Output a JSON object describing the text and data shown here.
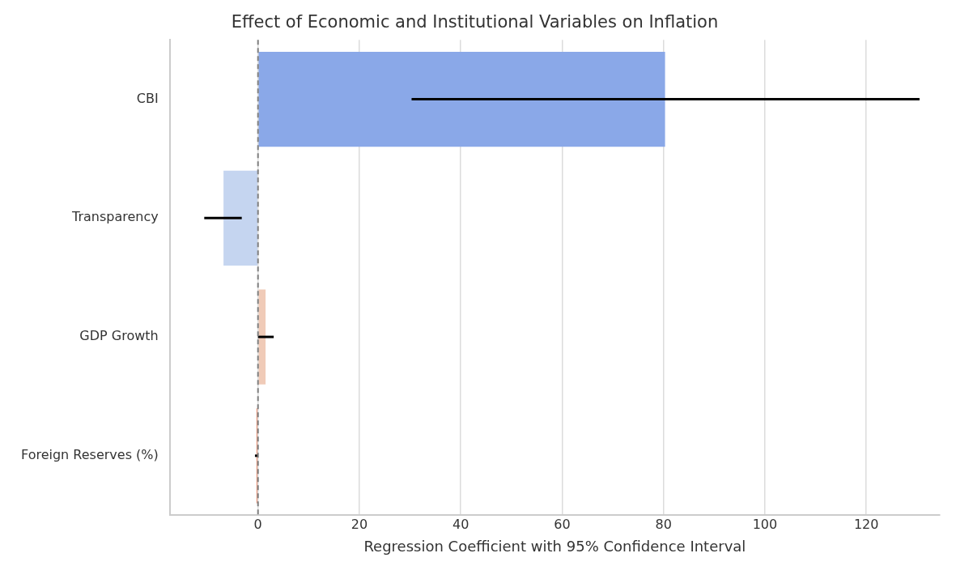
{
  "chart_data": {
    "type": "bar",
    "orientation": "horizontal",
    "title": "Effect of Economic and Institutional Variables on Inflation",
    "xlabel": "Regression Coefficient with 95% Confidence Interval",
    "categories": [
      "CBI",
      "Transparency",
      "GDP Growth",
      "Foreign Reserves (%)"
    ],
    "values": [
      80.3,
      -6.8,
      1.5,
      -0.3
    ],
    "colors": [
      "#8aa8e8",
      "#c5d5f0",
      "#f0cbb8",
      "#e8957a"
    ],
    "errors": [
      [
        30.3,
        130.5
      ],
      [
        -10.6,
        -3.2
      ],
      [
        0,
        3.1
      ],
      [
        -0.6,
        0
      ]
    ],
    "xlim": [
      -17.4,
      134.5
    ],
    "xticks": [
      0,
      20,
      40,
      60,
      80,
      100,
      120
    ],
    "grid": "x",
    "legend": false,
    "ref_lines": [
      {
        "axis": "x",
        "value": 0,
        "color": "#808080",
        "line_style": "dashed"
      }
    ]
  }
}
